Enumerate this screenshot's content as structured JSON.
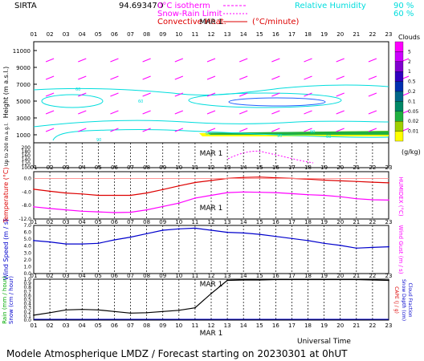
{
  "header": {
    "station": "SIRTA",
    "coords": "94.69347O",
    "legend_isotherm": "0°C isotherm",
    "legend_snow_rain": "Snow-Rain Limit",
    "legend_convective": "Convective Heat.",
    "legend_convective_unit": "(°C/minute)",
    "legend_rh": "Relative Humidity",
    "rh_level_1": "90 %",
    "rh_level_2": "60 %"
  },
  "footer": {
    "universal_time": "Universal Time",
    "caption": "Modele Atmospherique LMDZ / Forecast starting on 20230301 at 0hUT"
  },
  "colors": {
    "magenta": "#ff00ff",
    "cyan": "#00dddd",
    "red": "#dd0000",
    "blue": "#0000cc",
    "green_text": "#00aa00",
    "black": "#000000"
  },
  "chart_data": [
    {
      "id": "clouds_wind",
      "type": "heatmap",
      "title": "",
      "x_ticks": [
        "01",
        "02",
        "03",
        "04",
        "05",
        "06",
        "07",
        "08",
        "09",
        "10",
        "11",
        "12",
        "13",
        "14",
        "15",
        "16",
        "17",
        "18",
        "19",
        "20",
        "21",
        "22",
        "23"
      ],
      "date_label": "MAR   1",
      "ylabel": "Height (m a.s.l.)",
      "y_ticks_upper": [
        "1000",
        "3000",
        "5000",
        "7000",
        "9000",
        "11000"
      ],
      "ylabel_lower": "Up to 200 m a.g.l.",
      "y_ticks_lower": [
        "100",
        "120",
        "140",
        "160",
        "180",
        "200"
      ],
      "clouds_legend": {
        "title": "Clouds",
        "unit": "(g/kg)",
        "levels": [
          "0.01",
          "0.02",
          "0.05",
          "0.1",
          "0.2",
          "0.5",
          "1",
          "2",
          "5"
        ],
        "colors": [
          "#ffff00",
          "#a0d000",
          "#20b040",
          "#008866",
          "#006688",
          "#0030b0",
          "#3000c0",
          "#8000d0",
          "#cc00ff",
          "#ff00ff"
        ]
      },
      "rh_contour_labels": [
        "60",
        "60",
        "60",
        "90",
        "90",
        "90",
        "60"
      ]
    },
    {
      "id": "temperature",
      "type": "line",
      "ylabel": "Temperature (°C)",
      "ylabel_right": "HUMIDEX (°C)",
      "y_ticks": [
        "-12.0",
        "-8.0",
        "-4.0",
        "0.0"
      ],
      "ylim": [
        -12,
        2
      ],
      "x": [
        1,
        2,
        3,
        4,
        5,
        6,
        7,
        8,
        9,
        10,
        11,
        12,
        13,
        14,
        15,
        16,
        17,
        18,
        19,
        20,
        21,
        22,
        23
      ],
      "series": [
        {
          "color": "#dd0000",
          "values": [
            -3.2,
            -3.8,
            -4.3,
            -4.6,
            -5.0,
            -5.0,
            -5.0,
            -4.3,
            -3.3,
            -2.2,
            -1.2,
            -0.6,
            0.0,
            0.3,
            0.4,
            0.2,
            0.0,
            -0.2,
            -0.5,
            -0.7,
            -0.9,
            -1.1,
            -1.3
          ]
        },
        {
          "color": "#ff00ff",
          "values": [
            -8.4,
            -8.9,
            -9.3,
            -9.7,
            -9.9,
            -10.1,
            -10.0,
            -9.3,
            -8.3,
            -7.3,
            -5.8,
            -5.0,
            -4.2,
            -4.0,
            -4.1,
            -4.2,
            -4.5,
            -4.8,
            -5.0,
            -5.4,
            -6.0,
            -6.3,
            -6.4
          ]
        }
      ]
    },
    {
      "id": "wind",
      "type": "line",
      "ylabel": "Wind Speed (m / s)",
      "ylabel_right": "Wind Gust (m / s)",
      "y_ticks": [
        "0.0",
        "1.0",
        "2.0",
        "3.0",
        "4.0",
        "5.0",
        "6.0",
        "7.0"
      ],
      "ylim": [
        0,
        7
      ],
      "x": [
        1,
        2,
        3,
        4,
        5,
        6,
        7,
        8,
        9,
        10,
        11,
        12,
        13,
        14,
        15,
        16,
        17,
        18,
        19,
        20,
        21,
        22,
        23
      ],
      "series": [
        {
          "color": "#0000cc",
          "values": [
            4.8,
            4.6,
            4.3,
            4.3,
            4.4,
            4.9,
            5.3,
            5.8,
            6.3,
            6.5,
            6.6,
            6.3,
            6.0,
            5.9,
            5.7,
            5.4,
            5.1,
            4.8,
            4.4,
            4.1,
            3.7,
            3.8,
            3.9
          ]
        }
      ]
    },
    {
      "id": "precip",
      "type": "line",
      "ylabel": "Rain (mm / hour)",
      "ylabel_2": "Snow (cm / hour)",
      "ylabel_right": "CAPE (J / g)",
      "ylabel_right_2": "Snow Depth (cm)",
      "ylabel_right_3": "Cloud Fraction",
      "y_ticks": [
        "0.0",
        "0.1",
        "0.2",
        "0.3",
        "0.4",
        "0.5",
        "0.6",
        "0.7",
        "0.8",
        "0.9",
        "1.0"
      ],
      "ylim": [
        0,
        1
      ],
      "x": [
        1,
        2,
        3,
        4,
        5,
        6,
        7,
        8,
        9,
        10,
        11,
        12,
        13,
        14,
        15,
        16,
        17,
        18,
        19,
        20,
        21,
        22,
        23
      ],
      "series": [
        {
          "color": "#000000",
          "values": [
            0.12,
            0.18,
            0.25,
            0.26,
            0.25,
            0.21,
            0.17,
            0.18,
            0.21,
            0.24,
            0.3,
            0.65,
            0.97,
            0.98,
            0.98,
            0.99,
            0.99,
            0.99,
            0.99,
            0.99,
            0.99,
            0.98,
            0.97
          ]
        }
      ]
    }
  ]
}
